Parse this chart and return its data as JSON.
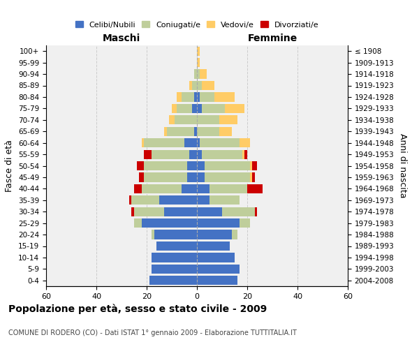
{
  "age_groups": [
    "0-4",
    "5-9",
    "10-14",
    "15-19",
    "20-24",
    "25-29",
    "30-34",
    "35-39",
    "40-44",
    "45-49",
    "50-54",
    "55-59",
    "60-64",
    "65-69",
    "70-74",
    "75-79",
    "80-84",
    "85-89",
    "90-94",
    "95-99",
    "100+"
  ],
  "birth_years": [
    "2004-2008",
    "1999-2003",
    "1994-1998",
    "1989-1993",
    "1984-1988",
    "1979-1983",
    "1974-1978",
    "1969-1973",
    "1964-1968",
    "1959-1963",
    "1954-1958",
    "1949-1953",
    "1944-1948",
    "1939-1943",
    "1934-1938",
    "1929-1933",
    "1924-1928",
    "1919-1923",
    "1914-1918",
    "1909-1913",
    "≤ 1908"
  ],
  "male": {
    "celibi": [
      19,
      18,
      18,
      16,
      17,
      22,
      13,
      15,
      6,
      4,
      4,
      3,
      5,
      1,
      0,
      2,
      1,
      0,
      0,
      0,
      0
    ],
    "coniugati": [
      0,
      0,
      0,
      0,
      1,
      3,
      12,
      11,
      16,
      17,
      17,
      15,
      16,
      11,
      9,
      6,
      5,
      2,
      1,
      0,
      0
    ],
    "vedovi": [
      0,
      0,
      0,
      0,
      0,
      0,
      0,
      0,
      0,
      0,
      0,
      0,
      1,
      1,
      2,
      2,
      2,
      1,
      0,
      0,
      0
    ],
    "divorziati": [
      0,
      0,
      0,
      0,
      0,
      0,
      1,
      1,
      3,
      2,
      3,
      3,
      0,
      0,
      0,
      0,
      0,
      0,
      0,
      0,
      0
    ]
  },
  "female": {
    "nubili": [
      16,
      17,
      15,
      13,
      14,
      17,
      10,
      5,
      5,
      3,
      3,
      2,
      1,
      0,
      0,
      2,
      1,
      0,
      0,
      0,
      0
    ],
    "coniugate": [
      0,
      0,
      0,
      0,
      2,
      4,
      13,
      12,
      15,
      18,
      18,
      16,
      16,
      9,
      9,
      9,
      6,
      2,
      1,
      0,
      0
    ],
    "vedove": [
      0,
      0,
      0,
      0,
      0,
      0,
      0,
      0,
      0,
      1,
      1,
      1,
      4,
      5,
      7,
      8,
      8,
      5,
      3,
      1,
      1
    ],
    "divorziate": [
      0,
      0,
      0,
      0,
      0,
      0,
      1,
      0,
      6,
      1,
      2,
      1,
      0,
      0,
      0,
      0,
      0,
      0,
      0,
      0,
      0
    ]
  },
  "colors": {
    "celibi": "#4472C4",
    "coniugati": "#BFCE9B",
    "vedovi": "#FFCC66",
    "divorziati": "#CC0000"
  },
  "xlim": 60,
  "title": "Popolazione per età, sesso e stato civile - 2009",
  "subtitle": "COMUNE DI RODERO (CO) - Dati ISTAT 1° gennaio 2009 - Elaborazione TUTTITALIA.IT",
  "xlabel_left": "Maschi",
  "xlabel_right": "Femmine",
  "ylabel_left": "Fasce di età",
  "ylabel_right": "Anni di nascita",
  "legend_labels": [
    "Celibi/Nubili",
    "Coniugati/e",
    "Vedovi/e",
    "Divorziati/e"
  ],
  "bg_color": "#ffffff",
  "plot_bg_color": "#f0f0f0",
  "grid_color": "#cccccc"
}
